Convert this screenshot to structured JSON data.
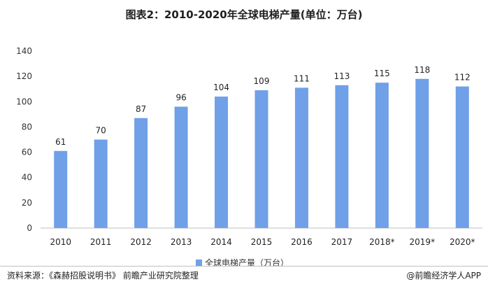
{
  "chart_data": {
    "type": "bar",
    "title": "图表2：2010-2020年全球电梯产量(单位：万台)",
    "categories": [
      "2010",
      "2011",
      "2012",
      "2013",
      "2014",
      "2015",
      "2016",
      "2017",
      "2018*",
      "2019*",
      "2020*"
    ],
    "series": [
      {
        "name": "全球电梯产量（万台）",
        "values": [
          61,
          70,
          87,
          96,
          104,
          109,
          111,
          113,
          115,
          118,
          112
        ],
        "color": "#6fa0e8"
      }
    ],
    "yticks": [
      0,
      20,
      40,
      60,
      80,
      100,
      120,
      140
    ],
    "ylim": [
      0,
      140
    ],
    "legend_position": "bottom",
    "grid": false
  },
  "footer": {
    "source": "资料来源：《森赫招股说明书》 前瞻产业研究院整理",
    "brand": "@前瞻经济学人APP"
  }
}
